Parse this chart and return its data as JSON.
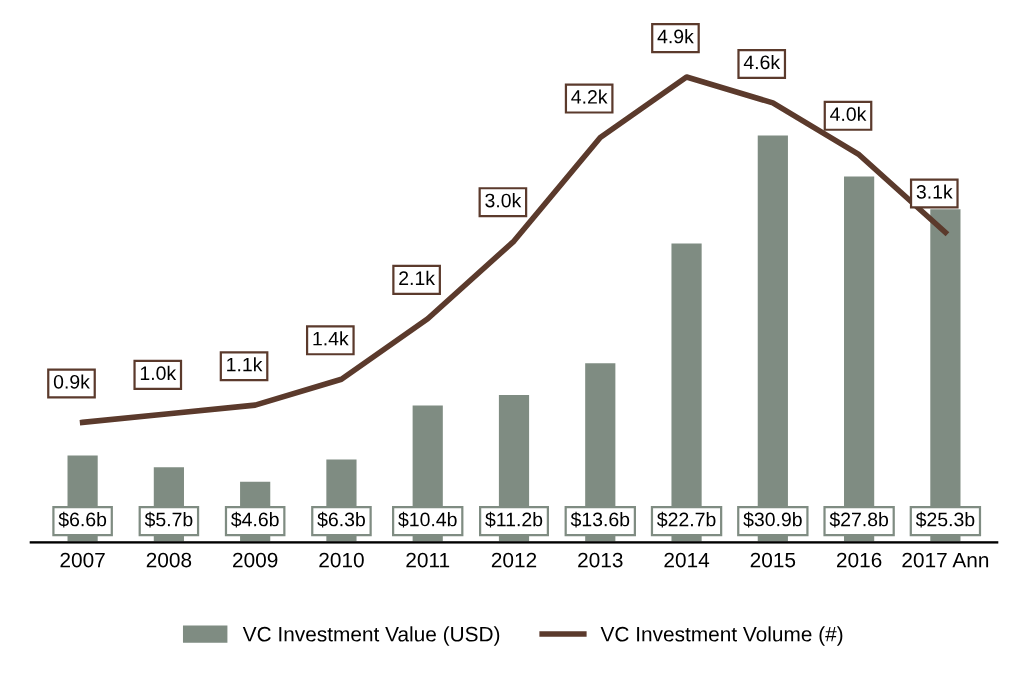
{
  "chart_data": {
    "type": "bar",
    "categories": [
      "2007",
      "2008",
      "2009",
      "2010",
      "2011",
      "2012",
      "2013",
      "2014",
      "2015",
      "2016",
      "2017 Ann"
    ],
    "series": [
      {
        "name": "VC Investment Value (USD)",
        "color": "#7f8c82",
        "values": [
          6.6,
          5.7,
          4.6,
          6.3,
          10.4,
          11.2,
          13.6,
          22.7,
          30.9,
          27.8,
          25.3
        ],
        "value_labels": [
          "$6.6b",
          "$5.7b",
          "$4.6b",
          "$6.3b",
          "$10.4b",
          "$11.2b",
          "$13.6b",
          "$22.7b",
          "$30.9b",
          "$27.8b",
          "$25.3b"
        ]
      },
      {
        "name": "VC Investment Volume (#)",
        "type": "line",
        "axis": "y2",
        "color": "#5b3a2c",
        "values": [
          0.9,
          1.0,
          1.1,
          1.4,
          2.1,
          3.0,
          4.2,
          4.9,
          4.6,
          4.0,
          3.1
        ],
        "value_labels": [
          "0.9k",
          "1.0k",
          "1.1k",
          "1.4k",
          "2.1k",
          "3.0k",
          "4.2k",
          "4.9k",
          "4.6k",
          "4.0k",
          "3.1k"
        ]
      }
    ],
    "legend": "bottom",
    "grid": false,
    "marker": "none",
    "line_style": "solid"
  }
}
